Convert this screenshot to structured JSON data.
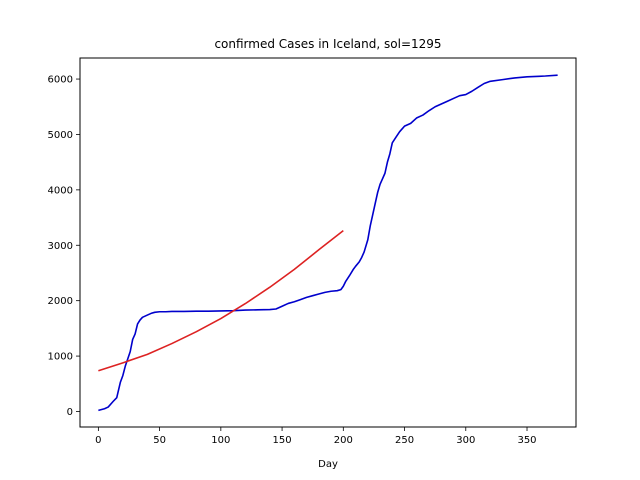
{
  "chart_data": {
    "type": "line",
    "title": "confirmed Cases in Iceland, sol=1295",
    "xlabel": "Day",
    "ylabel": "",
    "xlim": [
      -15,
      390
    ],
    "ylim": [
      -280,
      6380
    ],
    "xticks": [
      0,
      50,
      100,
      150,
      200,
      250,
      300,
      350
    ],
    "yticks": [
      0,
      1000,
      2000,
      3000,
      4000,
      5000,
      6000
    ],
    "grid": false,
    "legend": "none",
    "series": [
      {
        "color": "#0000cc",
        "x": [
          0,
          5,
          8,
          12,
          15,
          18,
          20,
          22,
          24,
          26,
          28,
          30,
          32,
          34,
          36,
          38,
          40,
          43,
          46,
          50,
          55,
          60,
          70,
          80,
          90,
          100,
          110,
          120,
          130,
          140,
          145,
          150,
          155,
          160,
          165,
          170,
          175,
          180,
          185,
          190,
          195,
          198,
          200,
          202,
          205,
          208,
          210,
          213,
          215,
          217,
          220,
          222,
          224,
          226,
          228,
          230,
          232,
          234,
          236,
          238,
          240,
          243,
          246,
          250,
          255,
          260,
          265,
          270,
          275,
          280,
          285,
          290,
          295,
          300,
          305,
          310,
          315,
          320,
          330,
          340,
          350,
          360,
          365,
          375
        ],
        "values": [
          20,
          50,
          80,
          180,
          250,
          530,
          650,
          820,
          950,
          1080,
          1300,
          1400,
          1580,
          1650,
          1700,
          1720,
          1740,
          1770,
          1790,
          1800,
          1800,
          1805,
          1805,
          1810,
          1810,
          1815,
          1820,
          1830,
          1835,
          1840,
          1850,
          1900,
          1950,
          1980,
          2020,
          2060,
          2090,
          2120,
          2150,
          2170,
          2180,
          2200,
          2260,
          2350,
          2450,
          2560,
          2620,
          2700,
          2780,
          2880,
          3100,
          3350,
          3550,
          3750,
          3950,
          4100,
          4200,
          4300,
          4500,
          4650,
          4850,
          4950,
          5050,
          5150,
          5200,
          5300,
          5350,
          5430,
          5500,
          5550,
          5600,
          5650,
          5700,
          5720,
          5780,
          5850,
          5920,
          5960,
          5990,
          6020,
          6040,
          6050,
          6055,
          6070
        ]
      },
      {
        "color": "#dd2222",
        "x": [
          0,
          20,
          40,
          60,
          80,
          100,
          120,
          140,
          160,
          180,
          200
        ],
        "values": [
          735,
          878,
          1031,
          1226,
          1440,
          1677,
          1947,
          2243,
          2565,
          2918,
          3265
        ]
      }
    ]
  }
}
